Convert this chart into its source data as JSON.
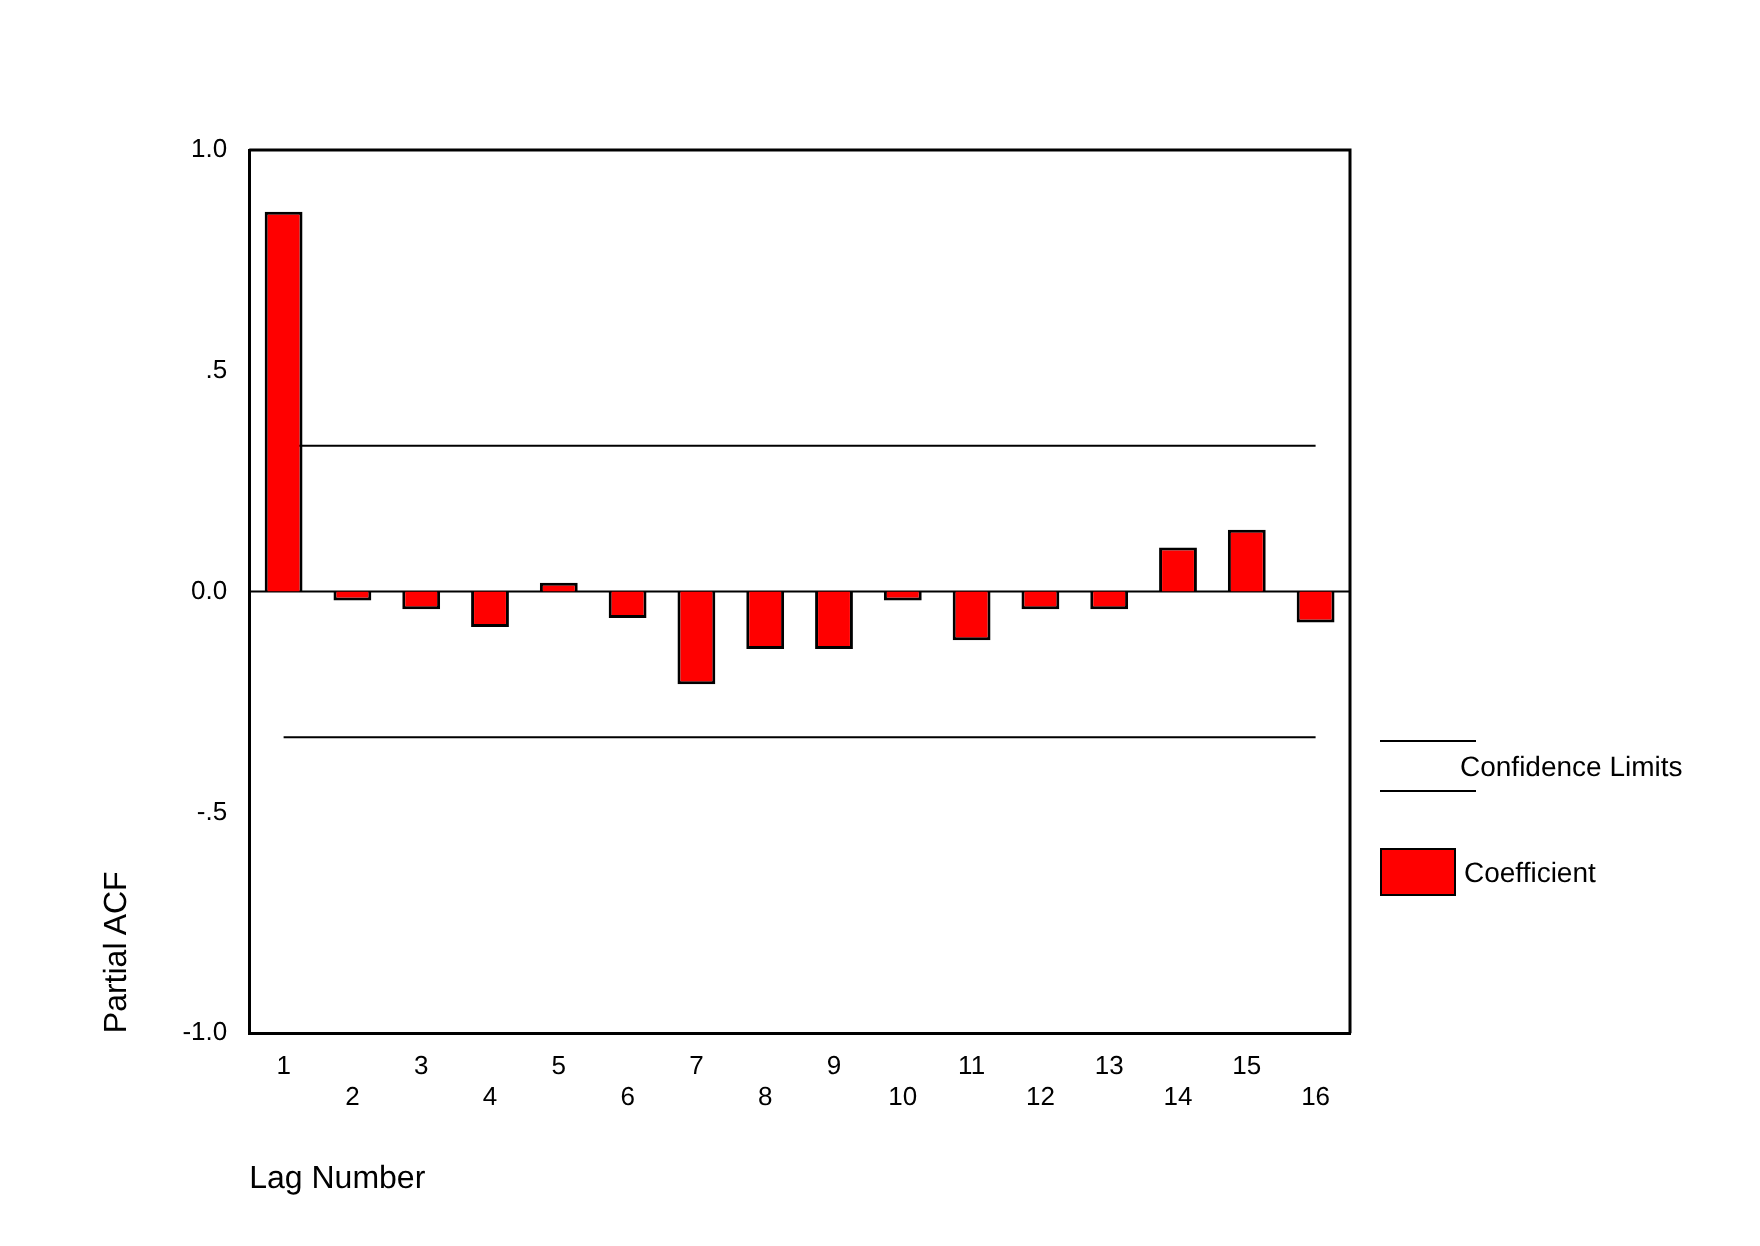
{
  "chart_data": {
    "type": "bar",
    "xlabel": "Lag Number",
    "ylabel": "Partial ACF",
    "categories": [
      "1",
      "2",
      "3",
      "4",
      "5",
      "6",
      "7",
      "8",
      "9",
      "10",
      "11",
      "12",
      "13",
      "14",
      "15",
      "16"
    ],
    "series": [
      {
        "name": "Coefficient",
        "color": "#ff0000",
        "values": [
          0.86,
          -0.02,
          -0.04,
          -0.08,
          0.02,
          -0.06,
          -0.21,
          -0.13,
          -0.13,
          -0.02,
          -0.11,
          -0.04,
          -0.04,
          0.1,
          0.14,
          -0.07
        ]
      }
    ],
    "ylim": [
      -1,
      1
    ],
    "yticks": [
      {
        "value": -1,
        "label": "-1.0"
      },
      {
        "value": -0.5,
        "label": "-.5"
      },
      {
        "value": 0,
        "label": "0.0"
      },
      {
        "value": 0.5,
        "label": ".5"
      },
      {
        "value": 1,
        "label": "1.0"
      }
    ],
    "ref_lines": [
      {
        "axis": "y",
        "value": 0.33,
        "label": "Confidence Limits",
        "color": "#000000"
      },
      {
        "axis": "y",
        "value": -0.33,
        "color": "#000000"
      },
      {
        "axis": "y",
        "value": 0,
        "color": "#000000"
      }
    ],
    "grid": false,
    "legend": "right"
  }
}
